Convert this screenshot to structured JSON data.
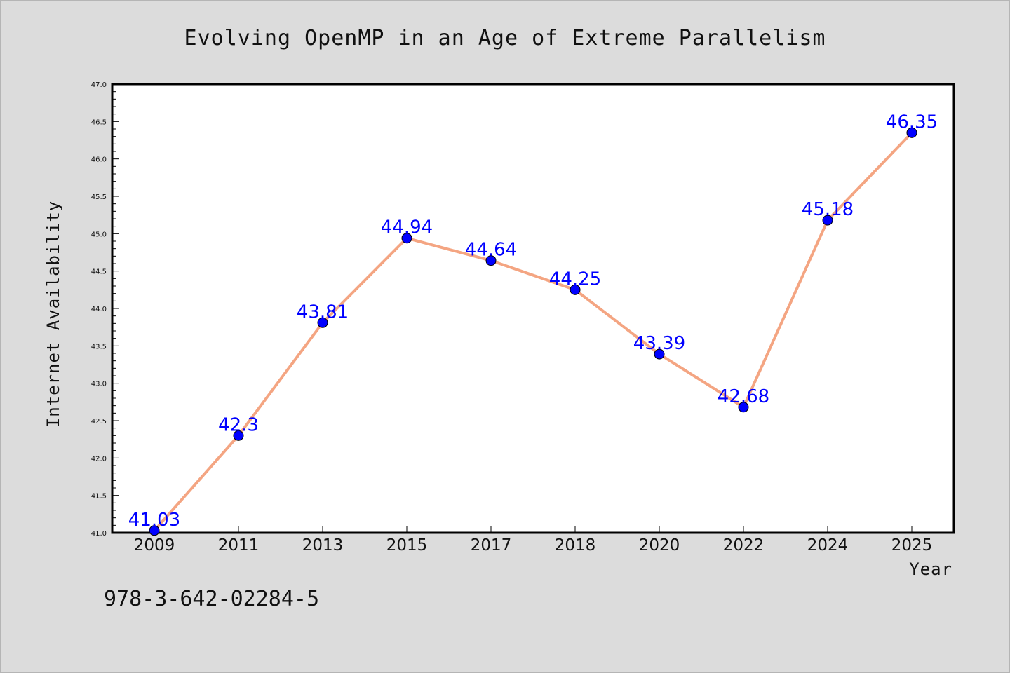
{
  "colors": {
    "background": "#dcdcdc",
    "plot_area": "#ffffff",
    "line": "#f4a582",
    "marker": "#0000ff",
    "data_label": "#0000ff",
    "axis": "#000000"
  },
  "isbn": "978-3-642-02284-5",
  "chart_data": {
    "type": "line",
    "title": "Evolving OpenMP in an Age of Extreme Parallelism",
    "xlabel": "Year",
    "ylabel": "Internet Availability",
    "categories": [
      "2009",
      "2011",
      "2013",
      "2015",
      "2017",
      "2018",
      "2020",
      "2022",
      "2024",
      "2025"
    ],
    "series": [
      {
        "values": [
          41.03,
          42.3,
          43.81,
          44.94,
          44.64,
          44.25,
          43.39,
          42.68,
          45.18,
          46.35
        ],
        "labels": [
          "41.03",
          "42.3",
          "43.81",
          "44.94",
          "44.64",
          "44.25",
          "43.39",
          "42.68",
          "45.18",
          "46.35"
        ]
      }
    ],
    "ylim": [
      41.0,
      47.0
    ],
    "yticks": [
      "41.0",
      "41.5",
      "42.0",
      "42.5",
      "43.0",
      "43.5",
      "44.0",
      "44.5",
      "45.0",
      "45.5",
      "46.0",
      "46.5",
      "47.0"
    ],
    "grid": false,
    "legend": "none"
  }
}
